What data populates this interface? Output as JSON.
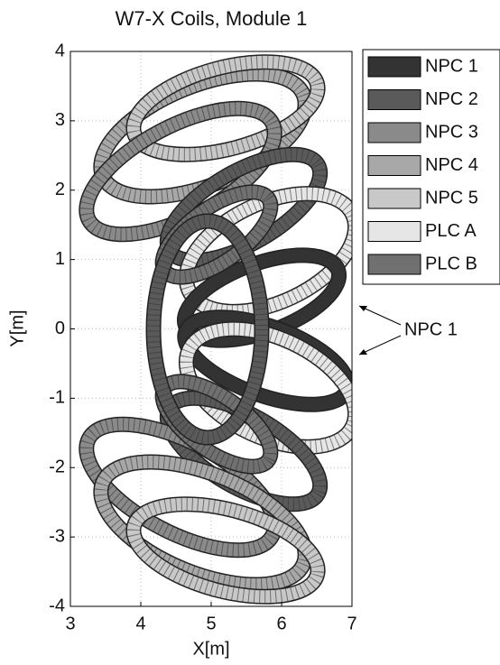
{
  "chart_data": {
    "type": "coil-plot",
    "title": "W7-X Coils, Module 1",
    "xlabel": "X[m]",
    "ylabel": "Y[m]",
    "xlim": [
      3,
      7
    ],
    "ylim": [
      -4,
      4
    ],
    "xticks": [
      3,
      4,
      5,
      6,
      7
    ],
    "yticks": [
      -4,
      -3,
      -2,
      -1,
      0,
      1,
      2,
      3,
      4
    ],
    "grid": true,
    "legend": [
      {
        "name": "NPC 1",
        "color": "#333333"
      },
      {
        "name": "NPC 2",
        "color": "#5a5a5a"
      },
      {
        "name": "NPC 3",
        "color": "#8a8a8a"
      },
      {
        "name": "NPC 4",
        "color": "#a8a8a8"
      },
      {
        "name": "NPC 5",
        "color": "#c8c8c8"
      },
      {
        "name": "PLC A",
        "color": "#e6e6e6"
      },
      {
        "name": "PLC B",
        "color": "#707070"
      }
    ],
    "annotation": "NPC 1"
  }
}
